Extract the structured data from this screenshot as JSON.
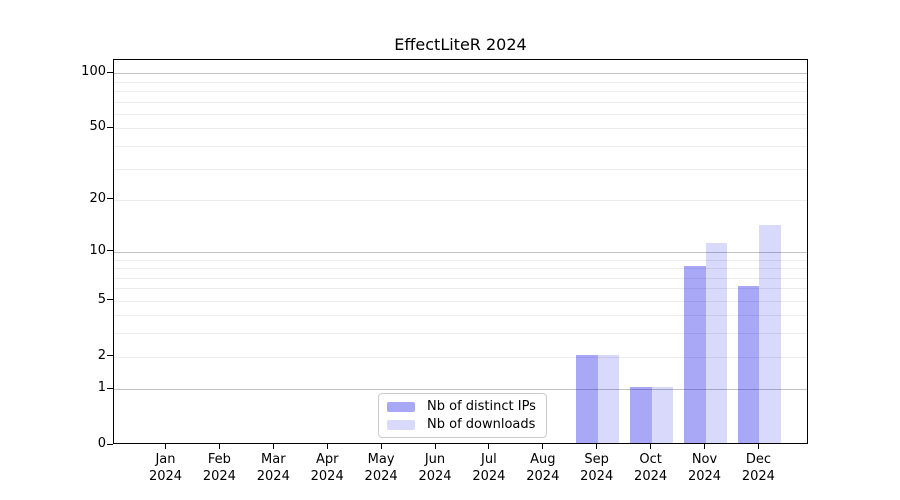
{
  "chart_data": {
    "type": "bar",
    "title": "EffectLiteR 2024",
    "x": {
      "categories": [
        "Jan",
        "Feb",
        "Mar",
        "Apr",
        "May",
        "Jun",
        "Jul",
        "Aug",
        "Sep",
        "Oct",
        "Nov",
        "Dec"
      ],
      "year_label": "2024"
    },
    "series": [
      {
        "name": "Nb of distinct IPs",
        "color": "rgba(0,0,230,0.34)",
        "values": [
          0,
          0,
          0,
          0,
          0,
          0,
          0,
          0,
          2,
          1,
          8,
          6
        ]
      },
      {
        "name": "Nb of downloads",
        "color": "rgba(0,0,230,0.15)",
        "values": [
          0,
          0,
          0,
          0,
          0,
          0,
          0,
          0,
          2,
          1,
          11,
          14
        ]
      }
    ],
    "y_axis": {
      "scale": "log1p",
      "ticks": [
        0,
        1,
        2,
        5,
        10,
        20,
        50,
        100
      ],
      "minor_gridlines": [
        3,
        4,
        6,
        7,
        8,
        9,
        30,
        40,
        60,
        70,
        80,
        90
      ],
      "decade_lines": [
        1,
        10,
        100
      ],
      "ylim": [
        0,
        117
      ]
    },
    "legend": {
      "position": "lower center",
      "items": [
        "Nb of distinct IPs",
        "Nb of downloads"
      ]
    },
    "grid": "horizontal major+minor",
    "colors": {
      "axis": "#000000",
      "grid_major": "#c2c2c2",
      "grid_minor": "#ececec",
      "background": "#ffffff",
      "text": "#000000"
    }
  }
}
